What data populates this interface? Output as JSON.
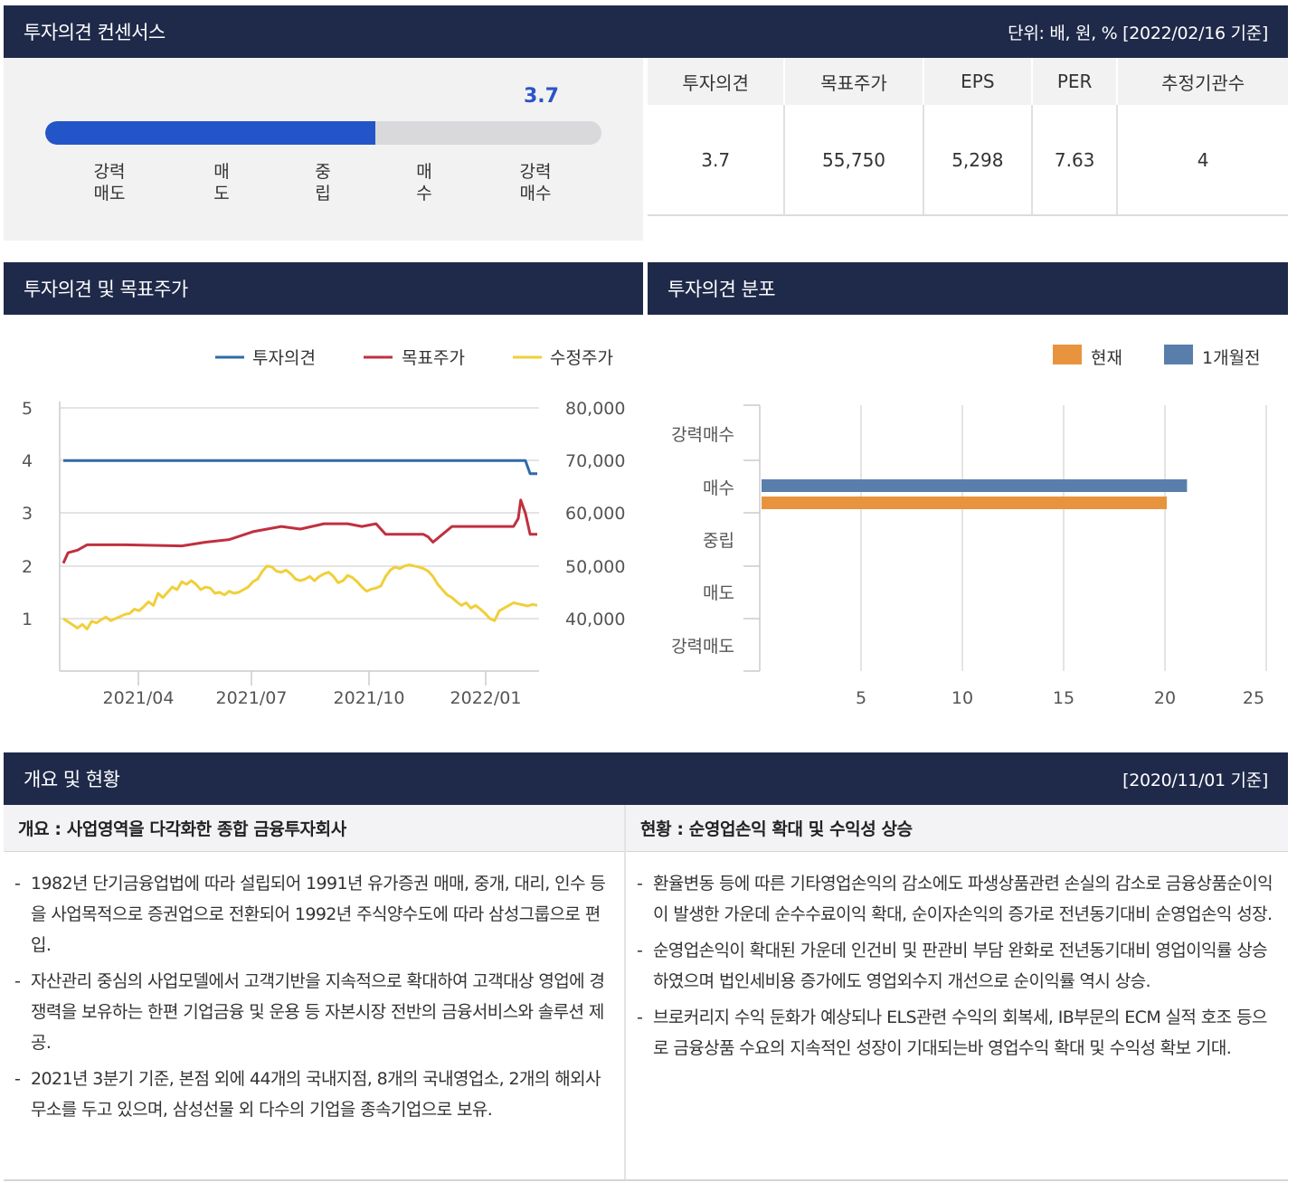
{
  "consensus": {
    "title": "투자의견 컨센서스",
    "unit_note": "단위: 배, 원, % [2022/02/16 기준]",
    "score": "3.7",
    "score_value": 3.7,
    "scale_labels": [
      "강력\n매도",
      "매\n도",
      "중\n립",
      "매\n수",
      "강력\n매수"
    ],
    "table": {
      "headers": [
        "투자의견",
        "목표주가",
        "EPS",
        "PER",
        "추정기관수"
      ],
      "values": [
        "3.7",
        "55,750",
        "5,298",
        "7.63",
        "4"
      ]
    }
  },
  "opinion_target": {
    "title": "투자의견 및 목표주가",
    "legend": [
      {
        "name": "투자의견",
        "color": "#2f6aa8"
      },
      {
        "name": "목표주가",
        "color": "#c0303f"
      },
      {
        "name": "수정주가",
        "color": "#f0cf3a"
      }
    ]
  },
  "distribution": {
    "title": "투자의견 분포",
    "legend": [
      {
        "name": "현재",
        "color": "#e8943f"
      },
      {
        "name": "1개월전",
        "color": "#5a7eab"
      }
    ]
  },
  "chart_data": [
    {
      "type": "line",
      "y_left": {
        "ticks": [
          "5",
          "4",
          "3",
          "2",
          "1"
        ],
        "range": [
          0,
          5
        ]
      },
      "y_right": {
        "ticks": [
          "80,000",
          "70,000",
          "60,000",
          "50,000",
          "40,000"
        ],
        "range": [
          30000,
          80000
        ]
      },
      "x_ticks": [
        "2021/04",
        "2021/07",
        "2021/10",
        "2022/01"
      ],
      "grid": true,
      "legend_position": "top-right",
      "series": [
        {
          "name": "투자의견",
          "axis": "left",
          "x": [
            0,
            96,
            97.5,
            98.5,
            100
          ],
          "values": [
            4.0,
            4.0,
            4.0,
            3.75,
            3.75
          ]
        },
        {
          "name": "목표주가",
          "axis": "right",
          "x": [
            0,
            1,
            3,
            5,
            7,
            9,
            13,
            25,
            30,
            35,
            40,
            46,
            50,
            55,
            60,
            63,
            66,
            68,
            70,
            72,
            74,
            76,
            77,
            78,
            80,
            82,
            85,
            90,
            92,
            95,
            96,
            96.5,
            97.5,
            98.5,
            100
          ],
          "values": [
            50500,
            52500,
            53000,
            54000,
            54000,
            54000,
            54000,
            53800,
            54500,
            55000,
            56500,
            57500,
            57000,
            58000,
            58000,
            57500,
            58000,
            56000,
            56000,
            56000,
            56000,
            56000,
            55500,
            54500,
            56000,
            57500,
            57500,
            57500,
            57500,
            57500,
            59000,
            62500,
            60000,
            56000,
            56000
          ]
        },
        {
          "name": "수정주가",
          "axis": "right",
          "x": [
            0,
            2,
            3,
            4,
            5,
            6,
            7,
            8,
            9,
            10,
            11,
            12,
            13,
            14,
            15,
            16,
            17,
            18,
            19,
            20,
            21,
            22,
            23,
            24,
            25,
            26,
            27,
            28,
            29,
            30,
            31,
            32,
            33,
            34,
            35,
            36,
            37,
            38,
            39,
            40,
            41,
            42,
            43,
            44,
            45,
            46,
            47,
            48,
            49,
            50,
            51,
            52,
            53,
            54,
            55,
            56,
            57,
            58,
            59,
            60,
            61,
            62,
            63,
            64,
            65,
            66,
            67,
            68,
            69,
            70,
            71,
            72,
            73,
            74,
            75,
            76,
            77,
            78,
            79,
            80,
            81,
            82,
            83,
            84,
            85,
            86,
            87,
            88,
            89,
            90,
            91,
            92,
            93,
            94,
            95,
            96,
            97,
            98,
            99,
            100
          ],
          "values": [
            40000,
            38800,
            38200,
            38900,
            38000,
            39500,
            39200,
            39800,
            40300,
            39600,
            40000,
            40400,
            40800,
            41000,
            41800,
            41500,
            42300,
            43200,
            42500,
            44800,
            44000,
            45000,
            46000,
            45500,
            47000,
            46500,
            47200,
            46500,
            45500,
            46000,
            45800,
            44800,
            45000,
            44500,
            45200,
            44800,
            45000,
            45500,
            46000,
            47000,
            47500,
            49000,
            50000,
            49800,
            49000,
            48800,
            49200,
            48500,
            47500,
            47200,
            47500,
            48000,
            47200,
            48000,
            48500,
            48800,
            48000,
            46800,
            47200,
            48200,
            47800,
            47000,
            46000,
            45200,
            45600,
            45800,
            46200,
            48000,
            49200,
            49800,
            49500,
            50000,
            50200,
            50000,
            49800,
            49500,
            49000,
            48000,
            46500,
            45500,
            44500,
            44000,
            43200,
            42500,
            43000,
            42000,
            42500,
            41800,
            41000,
            40000,
            39600,
            41500,
            42000,
            42500,
            43000,
            42800,
            42600,
            42400,
            42700,
            42500
          ]
        }
      ]
    },
    {
      "type": "bar",
      "orientation": "horizontal",
      "categories": [
        "강력매수",
        "매수",
        "중립",
        "매도",
        "강력매도"
      ],
      "x_ticks": [
        "5",
        "10",
        "15",
        "20",
        "25"
      ],
      "xlim": [
        0,
        25
      ],
      "grid": true,
      "legend_position": "top-right",
      "series": [
        {
          "name": "1개월전",
          "values": [
            0,
            21,
            0,
            0,
            0
          ]
        },
        {
          "name": "현재",
          "values": [
            0,
            20,
            0,
            0,
            0
          ]
        }
      ]
    }
  ],
  "overview": {
    "title": "개요 및 현황",
    "date": "[2020/11/01 기준]",
    "left": {
      "heading": "개요 : 사업영역을 다각화한 종합 금융투자회사",
      "items": [
        "1982년 단기금융업법에 따라 설립되어 1991년 유가증권 매매, 중개, 대리, 인수 등을 사업목적으로 증권업으로 전환되어 1992년 주식양수도에 따라 삼성그룹으로 편입.",
        "자산관리 중심의 사업모델에서 고객기반을 지속적으로 확대하여 고객대상 영업에 경쟁력을 보유하는 한편 기업금융 및 운용 등 자본시장 전반의 금융서비스와 솔루션 제공.",
        "2021년 3분기 기준, 본점 외에 44개의 국내지점, 8개의 국내영업소, 2개의 해외사무소를 두고 있으며, 삼성선물 외 다수의 기업을 종속기업으로 보유."
      ]
    },
    "right": {
      "heading": "현황 : 순영업손익 확대 및 수익성 상승",
      "items": [
        "환율변동 등에 따른 기타영업손익의 감소에도 파생상품관련 손실의 감소로 금융상품순이익이 발생한 가운데 순수수료이익 확대, 순이자손익의 증가로 전년동기대비 순영업손익 성장.",
        "순영업손익이 확대된 가운데 인건비 및 판관비 부담 완화로 전년동기대비 영업이익률 상승하였으며 법인세비용 증가에도 영업외수지 개선으로 순이익률 역시 상승.",
        "브로커리지 수익 둔화가 예상되나 ELS관련 수익의 회복세, IB부문의 ECM 실적 호조 등으로 금융상품 수요의 지속적인 성장이 기대되는바 영업수익 확대 및 수익성 확보 기대."
      ]
    }
  }
}
